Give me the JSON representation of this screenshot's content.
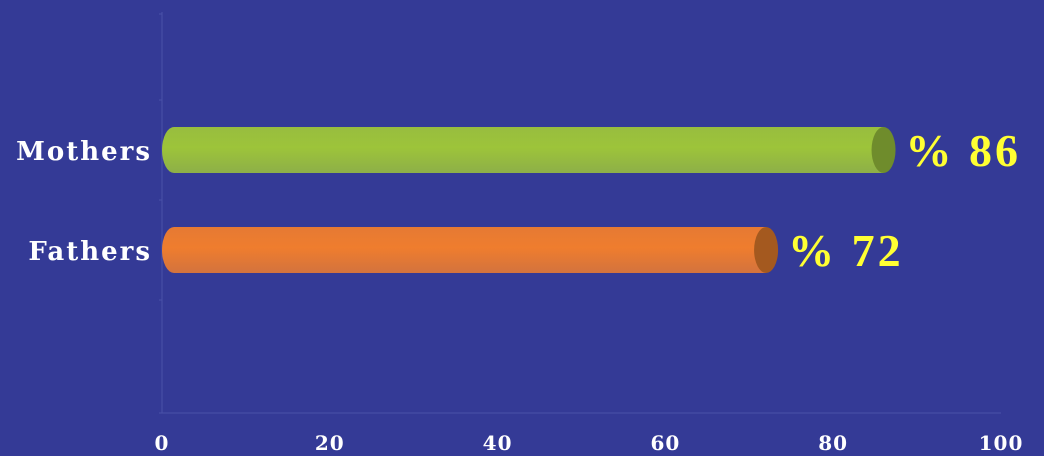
{
  "chart_data": {
    "type": "bar",
    "orientation": "horizontal",
    "categories": [
      "Mothers",
      "Fathers"
    ],
    "values": [
      86,
      72
    ],
    "data_labels": [
      "% 86",
      "% 72"
    ],
    "xlim": [
      0,
      100
    ],
    "x_ticks": [
      0,
      20,
      40,
      60,
      80,
      100
    ],
    "x_tick_labels": [
      "0",
      "20",
      "40",
      "60",
      "80",
      "100"
    ],
    "grid": false,
    "legend": "none",
    "bar_style": "3d-cylinder",
    "colors": {
      "background": "#343a96",
      "Mothers": "#9dc43a",
      "Mothers_end": "#6f8c2c",
      "Fathers": "#ef7d2e",
      "Fathers_end": "#a4591f",
      "data_label": "#ffff33",
      "axis": "#4a51a8",
      "text": "#ffffff"
    }
  }
}
